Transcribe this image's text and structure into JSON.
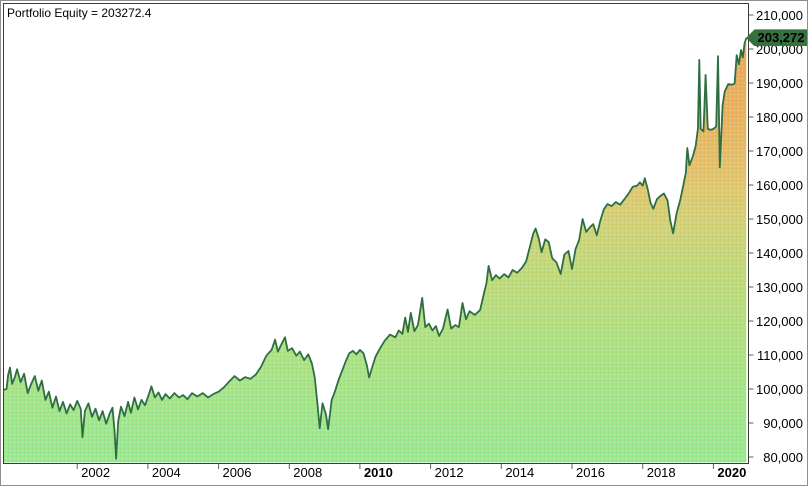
{
  "chart_data": {
    "type": "area",
    "title": "Portfolio Equity = 203272.4",
    "series_name": "Portfolio Equity",
    "last_value": 203272.4,
    "last_value_label": "203,272",
    "xlabel": "",
    "ylabel": "",
    "grid": false,
    "legend_position": "none",
    "x_range": [
      1999.93,
      2020.95
    ],
    "value_range": [
      78240,
      213240
    ],
    "ylim_ticks": [
      80000,
      210000
    ],
    "y_ticks": [
      {
        "value": 210000,
        "label": "210,000"
      },
      {
        "value": 200000,
        "label": "200,000"
      },
      {
        "value": 190000,
        "label": "190,000"
      },
      {
        "value": 180000,
        "label": "180,000"
      },
      {
        "value": 170000,
        "label": "170,000"
      },
      {
        "value": 160000,
        "label": "160,000"
      },
      {
        "value": 150000,
        "label": "150,000"
      },
      {
        "value": 140000,
        "label": "140,000"
      },
      {
        "value": 130000,
        "label": "130,000"
      },
      {
        "value": 120000,
        "label": "120,000"
      },
      {
        "value": 110000,
        "label": "110,000"
      },
      {
        "value": 100000,
        "label": "100,000"
      },
      {
        "value": 90000,
        "label": "90,000"
      },
      {
        "value": 80000,
        "label": "80,000"
      }
    ],
    "x_ticks": [
      {
        "year": 2002,
        "label": "2002",
        "bold": false
      },
      {
        "year": 2004,
        "label": "2004",
        "bold": false
      },
      {
        "year": 2006,
        "label": "2006",
        "bold": false
      },
      {
        "year": 2008,
        "label": "2008",
        "bold": false
      },
      {
        "year": 2010,
        "label": "2010",
        "bold": true
      },
      {
        "year": 2012,
        "label": "2012",
        "bold": false
      },
      {
        "year": 2014,
        "label": "2014",
        "bold": false
      },
      {
        "year": 2016,
        "label": "2016",
        "bold": false
      },
      {
        "year": 2018,
        "label": "2018",
        "bold": false
      },
      {
        "year": 2020,
        "label": "2020",
        "bold": true
      }
    ],
    "series": [
      [
        1999.93,
        99800
      ],
      [
        2000.0,
        100000
      ],
      [
        2000.05,
        104200
      ],
      [
        2000.1,
        106300
      ],
      [
        2000.16,
        101500
      ],
      [
        2000.24,
        103600
      ],
      [
        2000.3,
        105800
      ],
      [
        2000.4,
        102000
      ],
      [
        2000.5,
        104500
      ],
      [
        2000.6,
        98800
      ],
      [
        2000.7,
        101500
      ],
      [
        2000.8,
        103800
      ],
      [
        2000.9,
        99500
      ],
      [
        2001.0,
        102500
      ],
      [
        2001.1,
        96800
      ],
      [
        2001.2,
        99200
      ],
      [
        2001.3,
        94500
      ],
      [
        2001.4,
        97800
      ],
      [
        2001.5,
        93500
      ],
      [
        2001.6,
        96200
      ],
      [
        2001.7,
        92800
      ],
      [
        2001.8,
        95500
      ],
      [
        2001.9,
        93800
      ],
      [
        2002.0,
        96500
      ],
      [
        2002.1,
        94200
      ],
      [
        2002.15,
        85800
      ],
      [
        2002.22,
        93500
      ],
      [
        2002.32,
        95800
      ],
      [
        2002.42,
        91800
      ],
      [
        2002.52,
        94200
      ],
      [
        2002.62,
        90800
      ],
      [
        2002.72,
        93500
      ],
      [
        2002.82,
        89800
      ],
      [
        2002.92,
        92800
      ],
      [
        2003.0,
        94500
      ],
      [
        2003.06,
        87500
      ],
      [
        2003.1,
        79500
      ],
      [
        2003.16,
        90500
      ],
      [
        2003.24,
        94800
      ],
      [
        2003.34,
        92000
      ],
      [
        2003.44,
        96200
      ],
      [
        2003.52,
        93000
      ],
      [
        2003.62,
        97500
      ],
      [
        2003.72,
        94000
      ],
      [
        2003.82,
        96800
      ],
      [
        2003.92,
        95200
      ],
      [
        2004.02,
        98200
      ],
      [
        2004.1,
        100800
      ],
      [
        2004.2,
        97500
      ],
      [
        2004.3,
        99000
      ],
      [
        2004.4,
        96800
      ],
      [
        2004.5,
        98500
      ],
      [
        2004.62,
        97200
      ],
      [
        2004.75,
        98800
      ],
      [
        2004.88,
        97500
      ],
      [
        2005.0,
        98200
      ],
      [
        2005.12,
        97000
      ],
      [
        2005.25,
        98800
      ],
      [
        2005.4,
        97800
      ],
      [
        2005.55,
        98800
      ],
      [
        2005.7,
        97500
      ],
      [
        2005.85,
        98500
      ],
      [
        2006.0,
        99200
      ],
      [
        2006.15,
        100500
      ],
      [
        2006.3,
        102200
      ],
      [
        2006.45,
        103800
      ],
      [
        2006.6,
        102500
      ],
      [
        2006.75,
        103500
      ],
      [
        2006.9,
        103000
      ],
      [
        2007.05,
        104200
      ],
      [
        2007.2,
        106500
      ],
      [
        2007.35,
        109800
      ],
      [
        2007.5,
        111500
      ],
      [
        2007.6,
        114500
      ],
      [
        2007.68,
        111000
      ],
      [
        2007.78,
        113200
      ],
      [
        2007.88,
        115200
      ],
      [
        2007.96,
        111200
      ],
      [
        2008.08,
        112000
      ],
      [
        2008.2,
        109800
      ],
      [
        2008.3,
        111000
      ],
      [
        2008.42,
        108500
      ],
      [
        2008.54,
        110200
      ],
      [
        2008.64,
        107500
      ],
      [
        2008.72,
        103500
      ],
      [
        2008.8,
        95500
      ],
      [
        2008.86,
        88500
      ],
      [
        2008.94,
        95800
      ],
      [
        2009.04,
        92500
      ],
      [
        2009.1,
        88200
      ],
      [
        2009.2,
        96800
      ],
      [
        2009.3,
        99500
      ],
      [
        2009.4,
        102800
      ],
      [
        2009.5,
        105500
      ],
      [
        2009.6,
        108200
      ],
      [
        2009.7,
        110500
      ],
      [
        2009.8,
        111200
      ],
      [
        2009.9,
        110200
      ],
      [
        2010.0,
        111500
      ],
      [
        2010.1,
        110500
      ],
      [
        2010.2,
        106800
      ],
      [
        2010.26,
        103400
      ],
      [
        2010.34,
        106200
      ],
      [
        2010.44,
        109500
      ],
      [
        2010.56,
        111800
      ],
      [
        2010.7,
        114200
      ],
      [
        2010.85,
        116000
      ],
      [
        2011.0,
        115200
      ],
      [
        2011.1,
        117200
      ],
      [
        2011.2,
        116200
      ],
      [
        2011.28,
        121000
      ],
      [
        2011.36,
        116800
      ],
      [
        2011.44,
        122400
      ],
      [
        2011.54,
        117000
      ],
      [
        2011.64,
        118800
      ],
      [
        2011.76,
        126800
      ],
      [
        2011.85,
        118200
      ],
      [
        2011.95,
        119200
      ],
      [
        2012.05,
        117200
      ],
      [
        2012.15,
        118500
      ],
      [
        2012.24,
        115600
      ],
      [
        2012.35,
        117800
      ],
      [
        2012.48,
        123400
      ],
      [
        2012.58,
        117800
      ],
      [
        2012.7,
        118800
      ],
      [
        2012.8,
        118200
      ],
      [
        2012.9,
        125300
      ],
      [
        2013.0,
        120500
      ],
      [
        2013.1,
        122900
      ],
      [
        2013.25,
        121800
      ],
      [
        2013.4,
        123200
      ],
      [
        2013.5,
        127800
      ],
      [
        2013.58,
        131200
      ],
      [
        2013.64,
        136200
      ],
      [
        2013.74,
        132000
      ],
      [
        2013.85,
        133500
      ],
      [
        2013.95,
        132500
      ],
      [
        2014.08,
        133800
      ],
      [
        2014.2,
        132800
      ],
      [
        2014.32,
        135000
      ],
      [
        2014.45,
        134200
      ],
      [
        2014.58,
        135600
      ],
      [
        2014.7,
        137500
      ],
      [
        2014.8,
        141500
      ],
      [
        2014.9,
        145600
      ],
      [
        2014.97,
        147200
      ],
      [
        2015.06,
        144200
      ],
      [
        2015.14,
        140200
      ],
      [
        2015.24,
        144000
      ],
      [
        2015.34,
        143200
      ],
      [
        2015.44,
        138500
      ],
      [
        2015.56,
        137200
      ],
      [
        2015.68,
        133800
      ],
      [
        2015.78,
        139500
      ],
      [
        2015.9,
        140600
      ],
      [
        2016.0,
        135300
      ],
      [
        2016.1,
        141200
      ],
      [
        2016.2,
        143800
      ],
      [
        2016.3,
        150000
      ],
      [
        2016.4,
        146200
      ],
      [
        2016.5,
        147500
      ],
      [
        2016.6,
        148500
      ],
      [
        2016.7,
        145200
      ],
      [
        2016.8,
        149500
      ],
      [
        2016.9,
        152800
      ],
      [
        2017.0,
        154400
      ],
      [
        2017.12,
        153800
      ],
      [
        2017.24,
        155000
      ],
      [
        2017.36,
        154200
      ],
      [
        2017.48,
        155800
      ],
      [
        2017.6,
        157500
      ],
      [
        2017.72,
        159500
      ],
      [
        2017.84,
        159800
      ],
      [
        2017.92,
        160800
      ],
      [
        2018.0,
        159800
      ],
      [
        2018.06,
        162000
      ],
      [
        2018.14,
        158800
      ],
      [
        2018.22,
        154800
      ],
      [
        2018.3,
        153000
      ],
      [
        2018.4,
        155800
      ],
      [
        2018.5,
        156800
      ],
      [
        2018.6,
        157500
      ],
      [
        2018.7,
        155500
      ],
      [
        2018.78,
        149500
      ],
      [
        2018.86,
        145800
      ],
      [
        2018.96,
        151800
      ],
      [
        2019.06,
        155500
      ],
      [
        2019.16,
        160500
      ],
      [
        2019.22,
        163500
      ],
      [
        2019.26,
        170900
      ],
      [
        2019.32,
        165800
      ],
      [
        2019.42,
        168500
      ],
      [
        2019.5,
        171500
      ],
      [
        2019.56,
        176500
      ],
      [
        2019.6,
        196800
      ],
      [
        2019.64,
        176500
      ],
      [
        2019.72,
        175800
      ],
      [
        2019.78,
        192400
      ],
      [
        2019.84,
        176500
      ],
      [
        2019.92,
        176200
      ],
      [
        2020.0,
        176500
      ],
      [
        2020.08,
        177200
      ],
      [
        2020.13,
        197900
      ],
      [
        2020.18,
        165200
      ],
      [
        2020.26,
        183500
      ],
      [
        2020.32,
        187500
      ],
      [
        2020.42,
        189700
      ],
      [
        2020.52,
        189500
      ],
      [
        2020.6,
        189800
      ],
      [
        2020.66,
        198200
      ],
      [
        2020.72,
        195500
      ],
      [
        2020.78,
        199700
      ],
      [
        2020.83,
        197500
      ],
      [
        2020.88,
        201500
      ],
      [
        2020.93,
        203272.4
      ]
    ],
    "colors": {
      "line": "#2e6e41",
      "fill_top": "#eba94f",
      "fill_upper": "#ecb258",
      "fill_olive": "#e0c868",
      "fill_yellow_green": "#cdd572",
      "fill_mid_green": "#bcdc74",
      "fill_lower_green": "#a8e57e",
      "fill_bottom": "#90ee90",
      "badge_bg": "#35713f",
      "badge_text": "#000000",
      "frame": "#3c3c3c",
      "tick": "#606060",
      "text": "#000000",
      "window_border": "#8f8f8f"
    }
  }
}
